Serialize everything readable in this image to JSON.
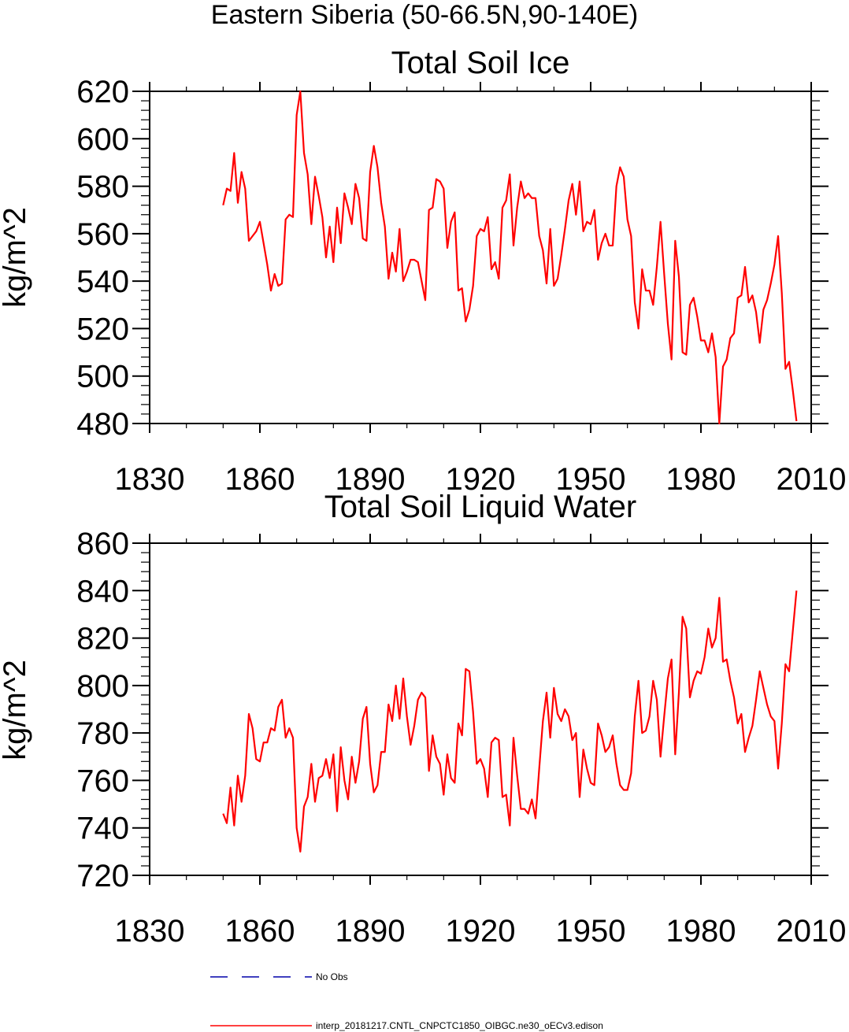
{
  "figure": {
    "title": "Eastern Siberia (50-66.5N,90-140E)"
  },
  "legend": [
    {
      "label": "No Obs",
      "color": "#0000aa",
      "style": "dashed"
    },
    {
      "label": "interp_20181217.CNTL_CNPCTC1850_OIBGC.ne30_oECv3.edison",
      "color": "#ff0000",
      "style": "solid"
    }
  ],
  "chart_data": [
    {
      "type": "line",
      "title": "Total Soil Ice",
      "xlabel": "",
      "ylabel": "kg/m^2",
      "xlim": [
        1830,
        2010
      ],
      "ylim": [
        480,
        620
      ],
      "xticks": [
        1830,
        1860,
        1890,
        1920,
        1950,
        1980,
        2010
      ],
      "yticks": [
        480,
        500,
        520,
        540,
        560,
        580,
        600,
        620
      ],
      "x_start": 1850,
      "series": [
        {
          "name": "interp_20181217.CNTL_CNPCTC1850_OIBGC.ne30_oECv3.edison",
          "color": "#ff0000",
          "values": [
            572,
            579,
            578,
            594,
            573,
            586,
            579,
            557,
            559,
            561,
            565,
            556,
            547,
            536,
            543,
            538,
            539,
            566,
            568,
            567,
            610,
            620,
            594,
            585,
            564,
            584,
            576,
            567,
            550,
            563,
            548,
            571,
            556,
            577,
            571,
            564,
            581,
            575,
            558,
            557,
            586,
            597,
            588,
            573,
            563,
            541,
            552,
            544,
            562,
            540,
            544,
            549,
            549,
            548,
            540,
            532,
            570,
            571,
            583,
            582,
            579,
            554,
            565,
            569,
            536,
            537,
            523,
            528,
            538,
            559,
            562,
            561,
            567,
            545,
            548,
            541,
            571,
            574,
            585,
            555,
            571,
            582,
            575,
            577,
            575,
            575,
            559,
            553,
            539,
            562,
            538,
            541,
            551,
            562,
            574,
            581,
            568,
            582,
            561,
            565,
            564,
            570,
            549,
            556,
            560,
            555,
            555,
            580,
            588,
            584,
            566,
            559,
            531,
            520,
            545,
            536,
            536,
            530,
            546,
            565,
            543,
            522,
            507,
            557,
            542,
            510,
            509,
            530,
            533,
            525,
            515,
            515,
            510,
            518,
            508,
            480,
            504,
            507,
            516,
            518,
            533,
            534,
            546,
            531,
            534,
            527,
            514,
            528,
            532,
            539,
            547,
            559,
            535,
            503,
            506,
            494,
            481
          ]
        }
      ]
    },
    {
      "type": "line",
      "title": "Total Soil Liquid Water",
      "xlabel": "",
      "ylabel": "kg/m^2",
      "xlim": [
        1830,
        2010
      ],
      "ylim": [
        720,
        860
      ],
      "xticks": [
        1830,
        1860,
        1890,
        1920,
        1950,
        1980,
        2010
      ],
      "yticks": [
        720,
        740,
        760,
        780,
        800,
        820,
        840,
        860
      ],
      "x_start": 1850,
      "series": [
        {
          "name": "interp_20181217.CNTL_CNPCTC1850_OIBGC.ne30_oECv3.edison",
          "color": "#ff0000",
          "values": [
            746,
            742,
            757,
            741,
            762,
            751,
            762,
            788,
            782,
            769,
            768,
            776,
            776,
            782,
            781,
            791,
            794,
            778,
            782,
            778,
            740,
            730,
            749,
            753,
            767,
            751,
            761,
            762,
            769,
            761,
            771,
            747,
            774,
            760,
            752,
            770,
            759,
            768,
            786,
            791,
            767,
            755,
            758,
            772,
            772,
            792,
            785,
            800,
            786,
            803,
            787,
            775,
            783,
            794,
            797,
            795,
            764,
            779,
            770,
            767,
            754,
            771,
            761,
            759,
            784,
            779,
            807,
            806,
            789,
            767,
            769,
            765,
            753,
            776,
            778,
            777,
            753,
            754,
            741,
            778,
            762,
            748,
            748,
            746,
            752,
            744,
            765,
            785,
            797,
            778,
            799,
            788,
            785,
            790,
            787,
            777,
            780,
            753,
            773,
            765,
            759,
            758,
            784,
            779,
            772,
            774,
            779,
            767,
            758,
            756,
            756,
            763,
            787,
            802,
            780,
            781,
            787,
            802,
            794,
            770,
            787,
            803,
            811,
            771,
            797,
            829,
            824,
            795,
            802,
            806,
            805,
            812,
            824,
            816,
            820,
            837,
            810,
            811,
            802,
            795,
            784,
            788,
            772,
            778,
            783,
            794,
            806,
            799,
            792,
            787,
            785,
            765,
            784,
            809,
            806,
            823,
            840
          ]
        }
      ]
    }
  ]
}
